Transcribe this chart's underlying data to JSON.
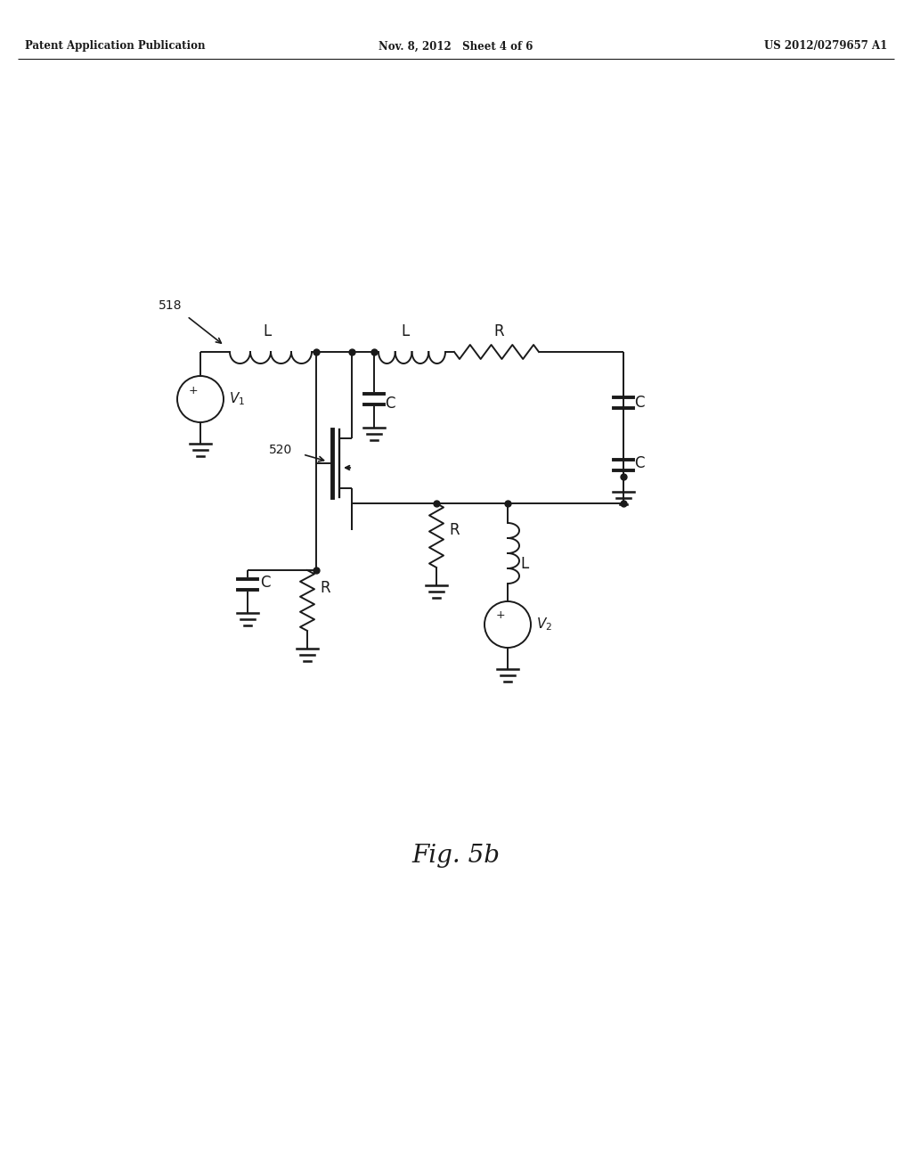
{
  "background_color": "#ffffff",
  "header_left": "Patent Application Publication",
  "header_center": "Nov. 8, 2012   Sheet 4 of 6",
  "header_right": "US 2012/0279657 A1",
  "label_518": "518",
  "label_520": "520",
  "fig_label": "Fig. 5b",
  "line_color": "#1a1a1a",
  "text_color": "#1a1a1a",
  "lw": 1.4
}
